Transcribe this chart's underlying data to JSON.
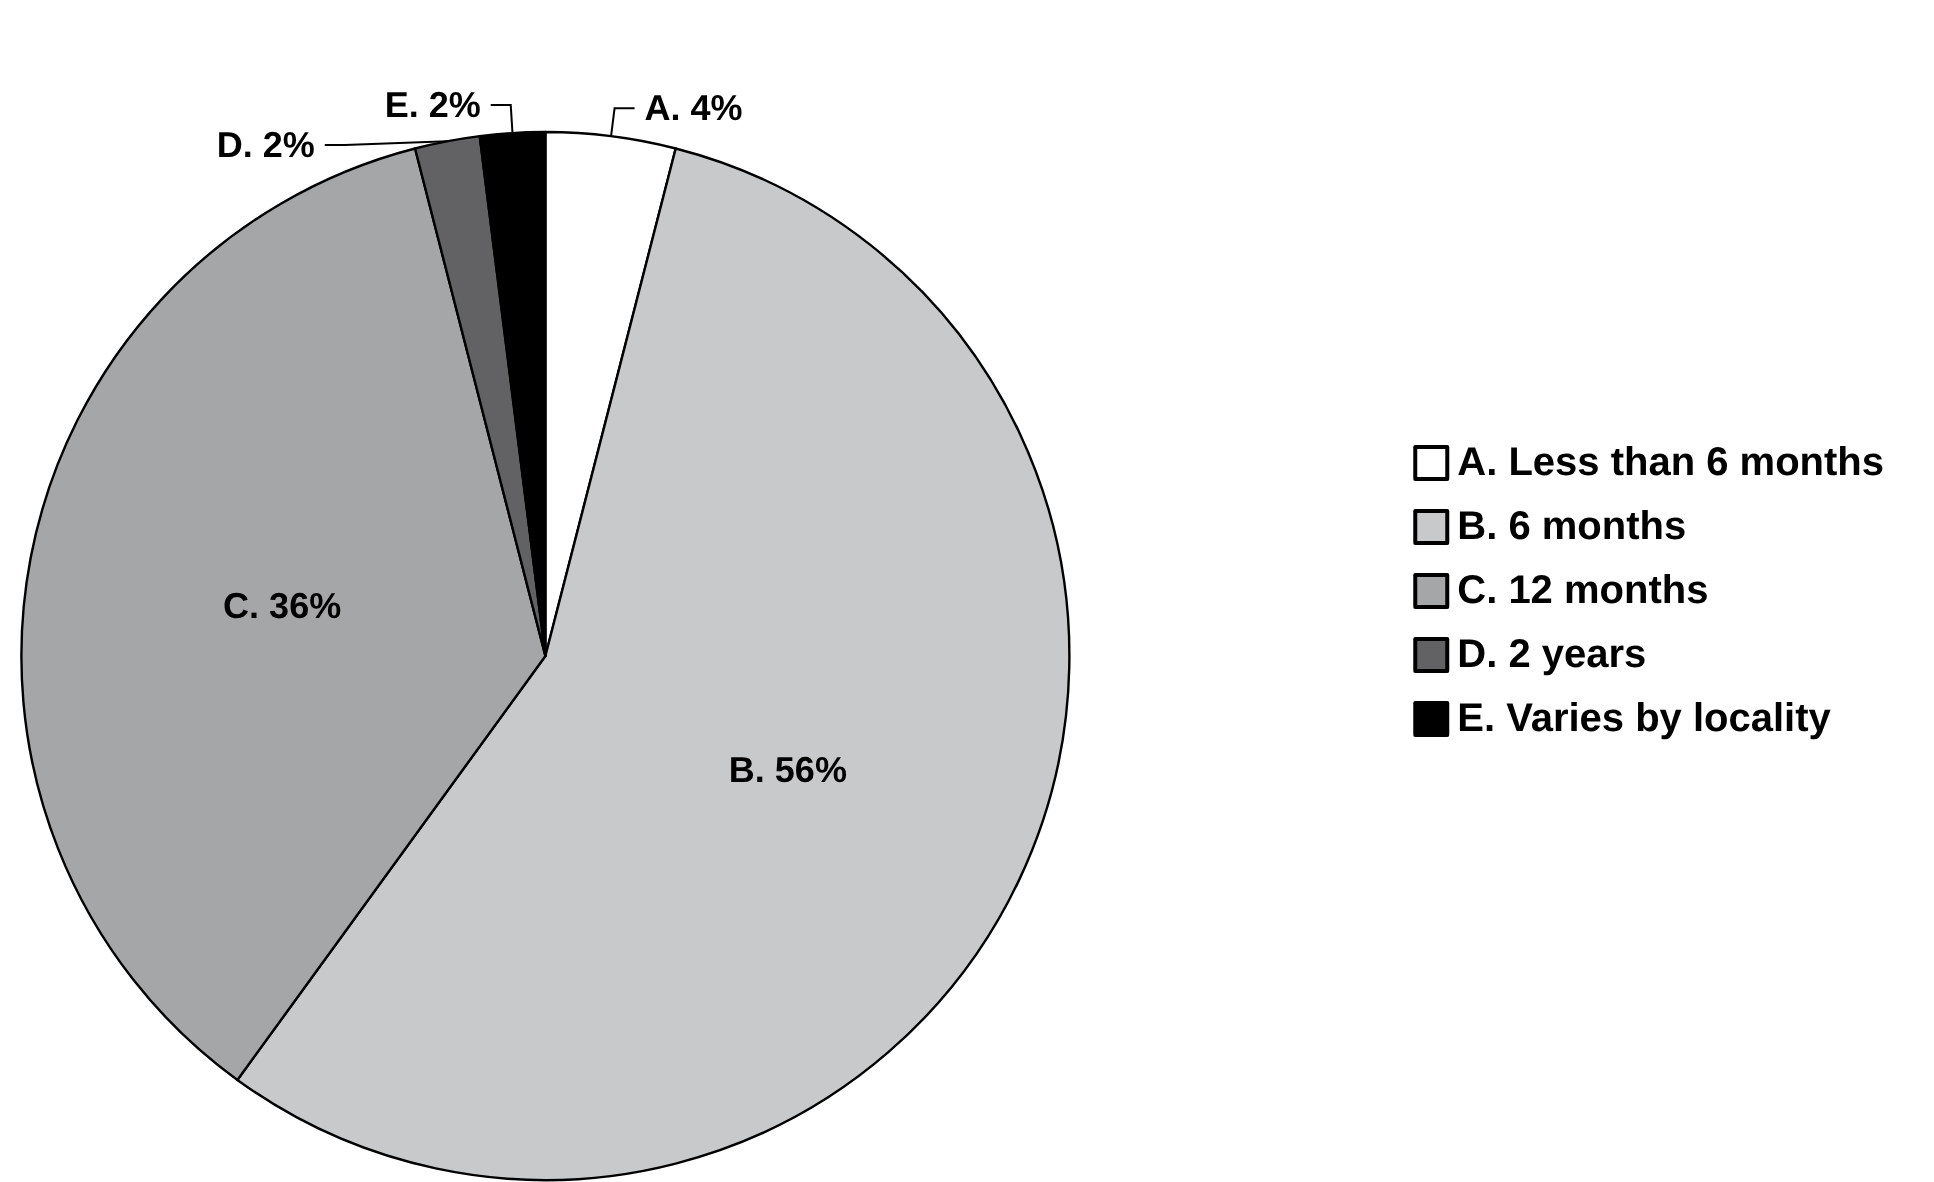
{
  "chart_data": {
    "type": "pie",
    "categories": [
      "A. Less than 6 months",
      "B. 6 months",
      "C. 12 months",
      "D. 2 years",
      "E. Varies by locality"
    ],
    "values": [
      4,
      56,
      36,
      2,
      2
    ],
    "colors": [
      "#ffffff",
      "#c8c9cb",
      "#a5a6a8",
      "#626264",
      "#000000"
    ],
    "value_labels": [
      "A. 4%",
      "B. 56%",
      "C. 36%",
      "D. 2%",
      "E. 2%"
    ],
    "legend": "right"
  }
}
